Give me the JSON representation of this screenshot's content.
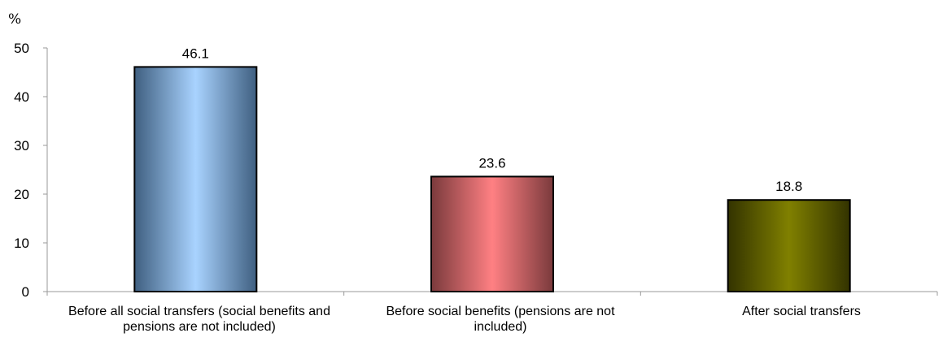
{
  "chart_data": {
    "type": "bar",
    "ylabel": "%",
    "categories": [
      "Before all social transfers (social benefits and pensions are not included)",
      "Before social benefits (pensions are not included)",
      "After social transfers"
    ],
    "values": [
      46.1,
      23.6,
      18.8
    ],
    "data_labels": [
      "46.1",
      "23.6",
      "18.8"
    ],
    "ylim": [
      0,
      50
    ],
    "yticks": [
      "0",
      "10",
      "20",
      "30",
      "40",
      "50"
    ],
    "grid": false,
    "legend": "none",
    "colors": [
      {
        "edge": "#3f5f80",
        "center": "#a9d3ff"
      },
      {
        "edge": "#7a3a3c",
        "center": "#ff8083"
      },
      {
        "edge": "#333300",
        "center": "#808000"
      }
    ]
  }
}
